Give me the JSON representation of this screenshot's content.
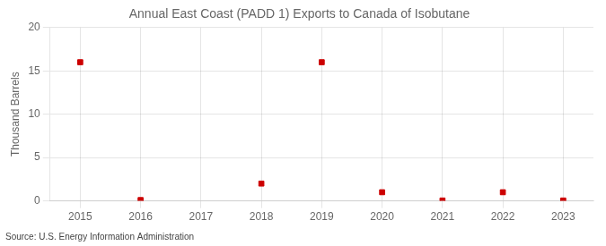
{
  "chart_data": {
    "type": "scatter",
    "title": "Annual East Coast (PADD 1) Exports to Canada of Isobutane",
    "ylabel": "Thousand Barrels",
    "source": "Source: U.S. Energy Information Administration",
    "x": [
      2015,
      2016,
      2018,
      2019,
      2020,
      2021,
      2022,
      2023
    ],
    "values": [
      16.0,
      0.1,
      2.0,
      16.0,
      1.0,
      0.05,
      1.0,
      0.05
    ],
    "color": "#cc0000",
    "marker": "square",
    "xlim": [
      2014.5,
      2023.5
    ],
    "xticks": [
      2015,
      2016,
      2017,
      2018,
      2019,
      2020,
      2021,
      2022,
      2023
    ],
    "ylim": [
      0,
      20
    ],
    "yticks": [
      0,
      5,
      10,
      15,
      20
    ],
    "grid": true
  }
}
